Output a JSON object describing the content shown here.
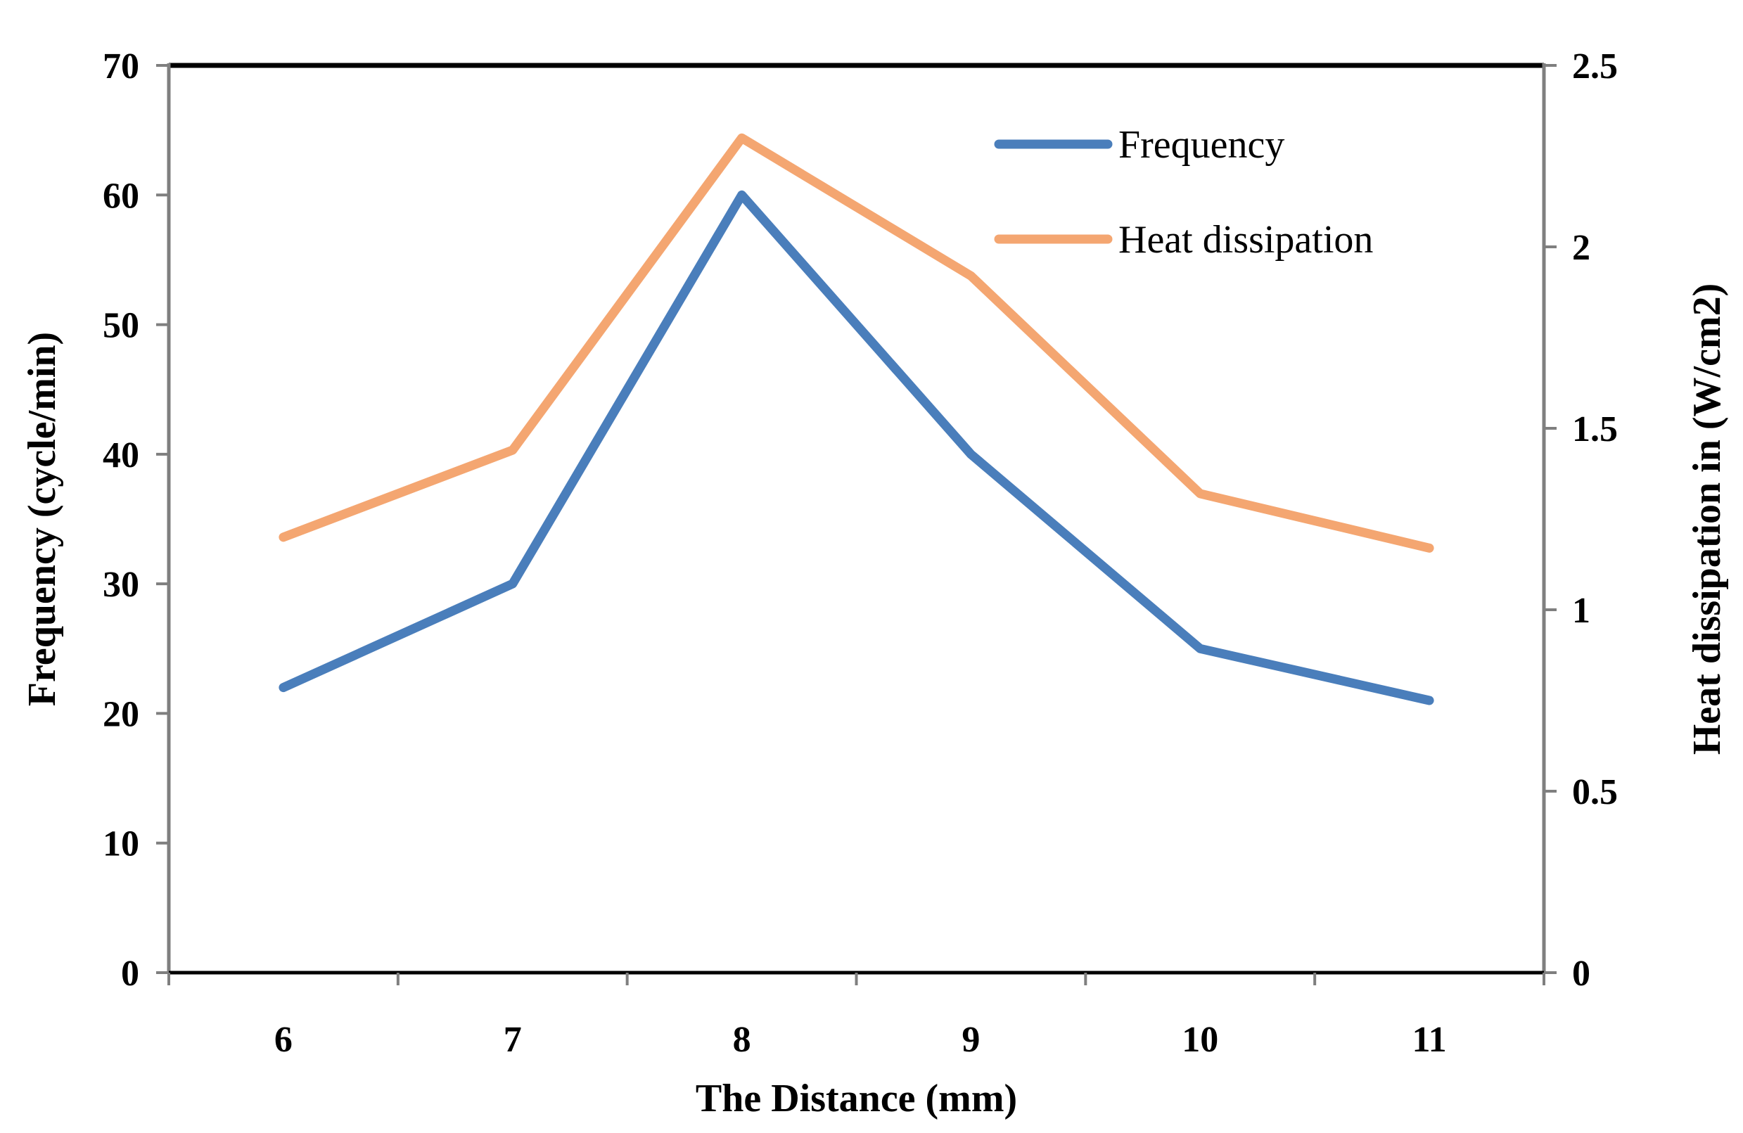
{
  "chart_data": {
    "type": "line",
    "xlabel": "The Distance (mm)",
    "ylabel": "Frequency (cycle/min)",
    "y2label": "Heat dissipation in (W/cm2)",
    "x": [
      6,
      7,
      8,
      9,
      10,
      11
    ],
    "x_tick_labels": [
      "6",
      "7",
      "8",
      "9",
      "10",
      "11"
    ],
    "ylim": [
      0,
      70
    ],
    "y_ticks": [
      0,
      10,
      20,
      30,
      40,
      50,
      60,
      70
    ],
    "y_tick_labels": [
      "0",
      "10",
      "20",
      "30",
      "40",
      "50",
      "60",
      "70"
    ],
    "y2lim": [
      0,
      2.5
    ],
    "y2_ticks": [
      0,
      0.5,
      1,
      1.5,
      2,
      2.5
    ],
    "y2_tick_labels": [
      "0",
      "0.5",
      "1",
      "1.5",
      "2",
      "2.5"
    ],
    "grid": false,
    "legend_position": "top-right",
    "series": [
      {
        "name": "Frequency",
        "axis": "left",
        "color": "#4a7ebb",
        "values": [
          22,
          30,
          60,
          40,
          25,
          21
        ]
      },
      {
        "name": "Heat dissipation",
        "axis": "right",
        "color": "#f4a671",
        "values": [
          1.2,
          1.44,
          2.3,
          1.92,
          1.32,
          1.17
        ]
      }
    ]
  }
}
